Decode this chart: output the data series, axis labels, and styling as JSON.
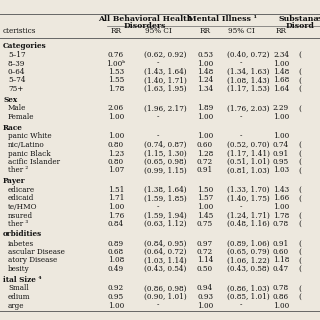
{
  "sections": [
    {
      "header": "Categories",
      "rows": [
        {
          "label": "5–17",
          "rr1": "0.76",
          "ci1": "(0.62, 0.92)",
          "rr2": "0.53",
          "ci2": "(0.40, 0.72)",
          "rr3": "2.34",
          "ci3": "("
        },
        {
          "label": "8–39",
          "rr1": "1.00ᵇ",
          "ci1": "-",
          "rr2": "1.00",
          "ci2": "-",
          "rr3": "1.00",
          "ci3": ""
        },
        {
          "label": "0–64",
          "rr1": "1.53",
          "ci1": "(1.43, 1.64)",
          "rr2": "1.48",
          "ci2": "(1.34, 1.63)",
          "rr3": "1.48",
          "ci3": "("
        },
        {
          "label": "5–74",
          "rr1": "1.55",
          "ci1": "(1.40, 1.71)",
          "rr2": "1.24",
          "ci2": "(1.08, 1.43)",
          "rr3": "1.68",
          "ci3": "("
        },
        {
          "label": "75+",
          "rr1": "1.78",
          "ci1": "(1.63, 1.95)",
          "rr2": "1.34",
          "ci2": "(1.17, 1.53)",
          "rr3": "1.64",
          "ci3": "("
        }
      ]
    },
    {
      "header": "Sex",
      "rows": [
        {
          "label": "Male",
          "rr1": "2.06",
          "ci1": "(1.96, 2.17)",
          "rr2": "1.89",
          "ci2": "(1.76, 2.03)",
          "rr3": "2.29",
          "ci3": "("
        },
        {
          "label": "Female",
          "rr1": "1.00",
          "ci1": "-",
          "rr2": "1.00",
          "ci2": "-",
          "rr3": "1.00",
          "ci3": ""
        }
      ]
    },
    {
      "header": "Race",
      "rows": [
        {
          "label": "panic White",
          "rr1": "1.00",
          "ci1": "-",
          "rr2": "1.00",
          "ci2": "-",
          "rr3": "1.00",
          "ci3": ""
        },
        {
          "label": "nic/Latino",
          "rr1": "0.80",
          "ci1": "(0.74, 0.87)",
          "rr2": "0.60",
          "ci2": "(0.52, 0.70)",
          "rr3": "0.74",
          "ci3": "("
        },
        {
          "label": "panic Black",
          "rr1": "1.23",
          "ci1": "(1.15, 1.30)",
          "rr2": "1.28",
          "ci2": "(1.17, 1.41)",
          "rr3": "0.91",
          "ci3": "("
        },
        {
          "label": "acific Islander",
          "rr1": "0.80",
          "ci1": "(0.65, 0.98)",
          "rr2": "0.72",
          "ci2": "(0.51, 1.01)",
          "rr3": "0.95",
          "ci3": "("
        },
        {
          "label": "ther ²",
          "rr1": "1.07",
          "ci1": "(0.99, 1.15)",
          "rr2": "0.91",
          "ci2": "(0.81, 1.03)",
          "rr3": "1.03",
          "ci3": "("
        }
      ]
    },
    {
      "header": "Payer",
      "rows": [
        {
          "label": "edicare",
          "rr1": "1.51",
          "ci1": "(1.38, 1.64)",
          "rr2": "1.50",
          "ci2": "(1.33, 1.70)",
          "rr3": "1.43",
          "ci3": "("
        },
        {
          "label": "edicaid",
          "rr1": "1.71",
          "ci1": "(1.59, 1.85)",
          "rr2": "1.57",
          "ci2": "(1.40, 1.75)",
          "rr3": "1.66",
          "ci3": "("
        },
        {
          "label": "te/HMO",
          "rr1": "1.00",
          "ci1": "-",
          "rr2": "1.00",
          "ci2": "-",
          "rr3": "1.00",
          "ci3": ""
        },
        {
          "label": "nsured",
          "rr1": "1.76",
          "ci1": "(1.59, 1.94)",
          "rr2": "1.45",
          "ci2": "(1.24, 1.71)",
          "rr3": "1.78",
          "ci3": "("
        },
        {
          "label": "ther ³",
          "rr1": "0.84",
          "ci1": "(0.63, 1.12)",
          "rr2": "0.75",
          "ci2": "(0.48, 1.16)",
          "rr3": "0.78",
          "ci3": "("
        }
      ]
    },
    {
      "header": "orbidities",
      "rows": [
        {
          "label": "iabetes",
          "rr1": "0.89",
          "ci1": "(0.84, 0.95)",
          "rr2": "0.97",
          "ci2": "(0.89, 1.06)",
          "rr3": "0.91",
          "ci3": "("
        },
        {
          "label": "ascular Disease",
          "rr1": "0.68",
          "ci1": "(0.64, 0.72)",
          "rr2": "0.72",
          "ci2": "(0.65, 0.79)",
          "rr3": "0.60",
          "ci3": "("
        },
        {
          "label": "atory Disease",
          "rr1": "1.08",
          "ci1": "(1.03, 1.14)",
          "rr2": "1.14",
          "ci2": "(1.06, 1.22)",
          "rr3": "1.18",
          "ci3": "("
        },
        {
          "label": "besity",
          "rr1": "0.49",
          "ci1": "(0.43, 0.54)",
          "rr2": "0.50",
          "ci2": "(0.43, 0.58)",
          "rr3": "0.47",
          "ci3": "("
        }
      ]
    },
    {
      "header": "ital Size ⁴",
      "rows": [
        {
          "label": "Small",
          "rr1": "0.92",
          "ci1": "(0.86, 0.98)",
          "rr2": "0.94",
          "ci2": "(0.86, 1.03)",
          "rr3": "0.78",
          "ci3": "("
        },
        {
          "label": "edium",
          "rr1": "0.95",
          "ci1": "(0.90, 1.01)",
          "rr2": "0.93",
          "ci2": "(0.85, 1.01)",
          "rr3": "0.86",
          "ci3": "("
        },
        {
          "label": "arge",
          "rr1": "1.00",
          "ci1": "-",
          "rr2": "1.00",
          "ci2": "-",
          "rr3": "1.00",
          "ci3": ""
        }
      ]
    }
  ],
  "bg_color": "#ede8de",
  "text_color": "#111111",
  "line_color": "#666666",
  "font_size": 5.2,
  "header_font_size": 5.6,
  "col_header_char": "cteristics",
  "grp1_label1": "All Behavioral Health",
  "grp1_label2": "Disorders",
  "grp2_label": "Mental Illness ¹",
  "grp3_label1": "Substanæ",
  "grp3_label2": "Disord"
}
